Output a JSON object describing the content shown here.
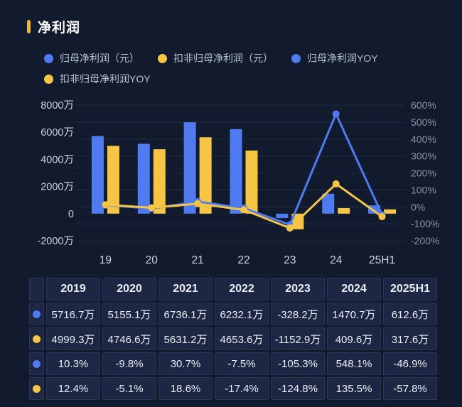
{
  "title": "净利润",
  "colors": {
    "blue": "#4E7CF0",
    "yellow": "#F6C544",
    "background": "#121A2E",
    "grid": "#212B48",
    "title_accent": "#EFB73E",
    "title_text": "#FFFFFF",
    "legend_text": "#B9C3D8",
    "left_axis_text": "#CBD2E1",
    "right_axis_text": "#8B93A7",
    "x_axis_text": "#CBD2E1",
    "table_cell_bg": "#1D2744",
    "table_border": "#2A3557",
    "table_text": "#E9EDF5"
  },
  "legend": {
    "items": [
      {
        "id": "net-profit",
        "label": "归母净利润（元）",
        "color": "blue"
      },
      {
        "id": "net-profit-deducted",
        "label": "扣非归母净利润（元）",
        "color": "yellow"
      },
      {
        "id": "net-profit-yoy",
        "label": "归母净利润YOY",
        "color": "blue"
      },
      {
        "id": "net-profit-deducted-yoy",
        "label": "扣非归母净利润YOY",
        "color": "yellow"
      }
    ]
  },
  "chart_data": {
    "type": "combo-bar-line",
    "title": "净利润",
    "categories": [
      "19",
      "20",
      "21",
      "22",
      "23",
      "24",
      "25H1"
    ],
    "bar_series": [
      {
        "id": "net-profit",
        "name": "归母净利润（元）",
        "color": "blue",
        "unit": "万",
        "values": [
          5716.7,
          5155.1,
          6736.1,
          6232.1,
          -328.2,
          1470.7,
          612.6
        ]
      },
      {
        "id": "net-profit-deducted",
        "name": "扣非归母净利润（元）",
        "color": "yellow",
        "unit": "万",
        "values": [
          4999.3,
          4746.6,
          5631.2,
          4653.6,
          -1152.9,
          409.6,
          317.6
        ]
      }
    ],
    "line_series": [
      {
        "id": "net-profit-yoy",
        "name": "归母净利润YOY",
        "color": "blue",
        "unit": "%",
        "values": [
          10.3,
          -9.8,
          30.7,
          -7.5,
          -105.3,
          548.1,
          -46.9
        ]
      },
      {
        "id": "net-profit-deducted-yoy",
        "name": "扣非归母净利润YOY",
        "color": "yellow",
        "unit": "%",
        "values": [
          12.4,
          -5.1,
          18.6,
          -17.4,
          -124.8,
          135.5,
          -57.8
        ]
      }
    ],
    "left_axis": {
      "unit": "万",
      "min": -2000,
      "max": 8000,
      "ticks": [
        "8000万",
        "6000万",
        "4000万",
        "2000万",
        "0",
        "-2000万"
      ]
    },
    "right_axis": {
      "unit": "%",
      "min": -200,
      "max": 600,
      "ticks": [
        "600%",
        "500%",
        "400%",
        "300%",
        "200%",
        "100%",
        "0%",
        "-100%",
        "-200%"
      ]
    },
    "grid": true,
    "legend_position": "top-left"
  },
  "table": {
    "columns": [
      "2019",
      "2020",
      "2021",
      "2022",
      "2023",
      "2024",
      "2025H1"
    ],
    "rows": [
      {
        "marker": "blue",
        "values": [
          "5716.7万",
          "5155.1万",
          "6736.1万",
          "6232.1万",
          "-328.2万",
          "1470.7万",
          "612.6万"
        ]
      },
      {
        "marker": "yellow",
        "values": [
          "4999.3万",
          "4746.6万",
          "5631.2万",
          "4653.6万",
          "-1152.9万",
          "409.6万",
          "317.6万"
        ]
      },
      {
        "marker": "blue",
        "values": [
          "10.3%",
          "-9.8%",
          "30.7%",
          "-7.5%",
          "-105.3%",
          "548.1%",
          "-46.9%"
        ]
      },
      {
        "marker": "yellow",
        "values": [
          "12.4%",
          "-5.1%",
          "18.6%",
          "-17.4%",
          "-124.8%",
          "135.5%",
          "-57.8%"
        ]
      }
    ]
  }
}
